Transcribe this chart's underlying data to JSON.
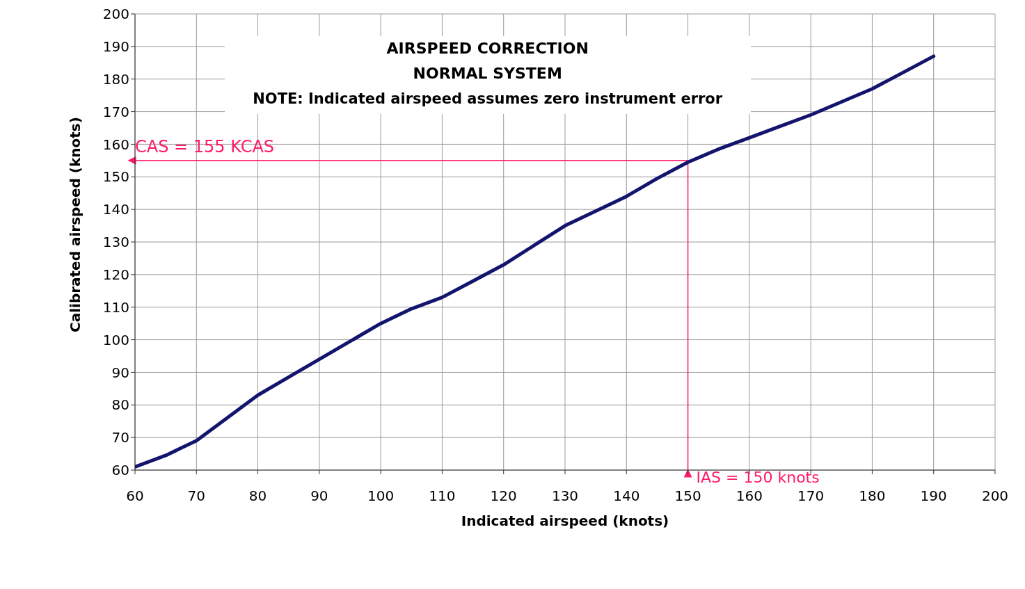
{
  "chart_data": {
    "type": "line",
    "title": "AIRSPEED CORRECTION",
    "subtitle": "NORMAL SYSTEM",
    "annotations": [
      "NOTE: Indicated airspeed assumes zero instrument error"
    ],
    "xlabel": "Indicated airspeed (knots)",
    "ylabel": "Calibrated airspeed (knots)",
    "x": [
      60,
      65,
      70,
      75,
      80,
      85,
      90,
      95,
      100,
      105,
      110,
      115,
      120,
      125,
      130,
      135,
      140,
      145,
      150,
      155,
      160,
      165,
      170,
      175,
      180,
      185,
      190
    ],
    "series": [
      {
        "color": "#14146e",
        "values": [
          61,
          64.5,
          69,
          76,
          83,
          88.5,
          94,
          99.5,
          105,
          109.5,
          113,
          118,
          123,
          129,
          135,
          139.5,
          144,
          149.5,
          154.5,
          158.5,
          162,
          165.5,
          169,
          173,
          177,
          182,
          187
        ]
      }
    ],
    "xlim": [
      60,
      200
    ],
    "xticks": [
      60,
      70,
      80,
      90,
      100,
      110,
      120,
      130,
      140,
      150,
      160,
      170,
      180,
      190,
      200
    ],
    "ylim": [
      60,
      200
    ],
    "yticks": [
      60,
      70,
      80,
      90,
      100,
      110,
      120,
      130,
      140,
      150,
      160,
      170,
      180,
      190,
      200
    ],
    "grid": true,
    "legend": false,
    "marker": "none",
    "line_style": "solid",
    "ref_lines": [
      {
        "axis": "y",
        "value": 155,
        "label": "CAS = 155 KCAS",
        "color": "#ff1a66"
      },
      {
        "axis": "x",
        "value": 150,
        "label": "IAS = 150 knots",
        "color": "#ff1a66"
      }
    ]
  }
}
